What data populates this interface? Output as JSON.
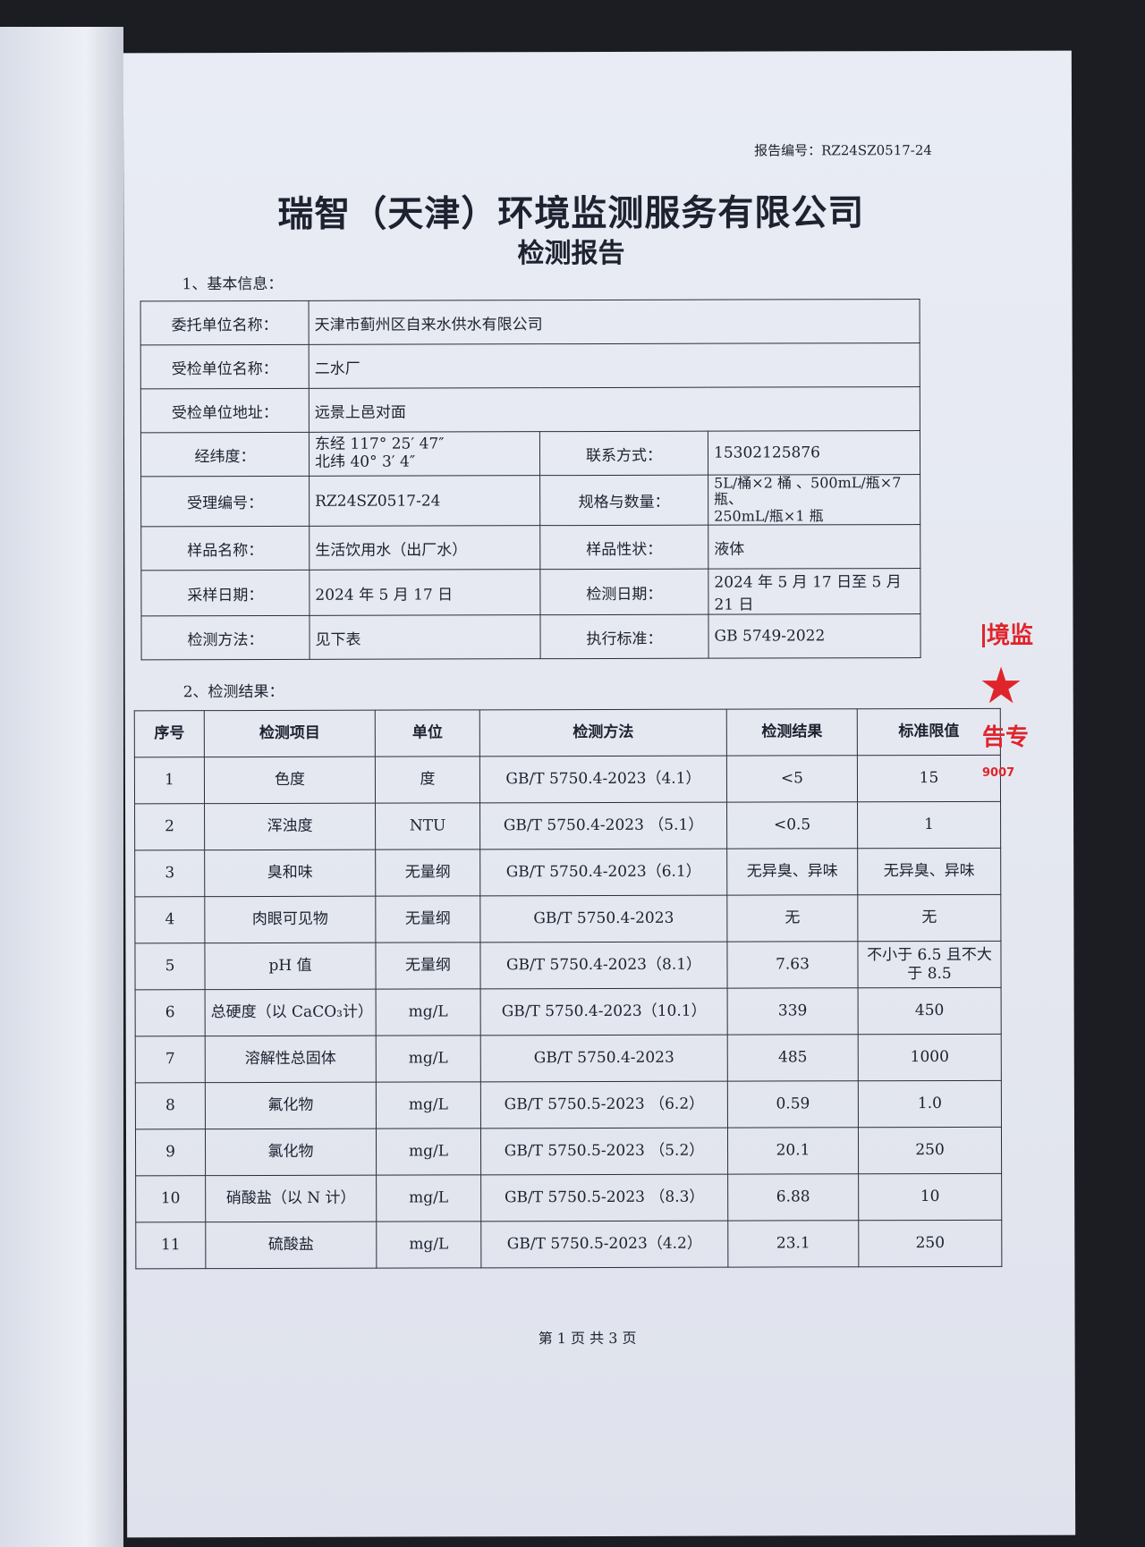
{
  "report_number": "报告编号：RZ24SZ0517-24",
  "title": "瑞智（天津）环境监测服务有限公司",
  "subtitle": "检测报告",
  "section1": "1、基本信息：",
  "basic_info": {
    "client_label": "委托单位名称：",
    "client": "天津市蓟州区自来水供水有限公司",
    "inspected_label": "受检单位名称：",
    "inspected": "二水厂",
    "address_label": "受检单位地址：",
    "address": "远景上邑对面",
    "coords_label": "经纬度：",
    "lon": "东经 117° 25′ 47″",
    "lat": "北纬 40° 3′ 4″",
    "contact_label": "联系方式：",
    "contact": "15302125876",
    "accept_label": "受理编号：",
    "accept": "RZ24SZ0517-24",
    "spec_label": "规格与数量：",
    "spec1": "5L/桶×2 桶 、500mL/瓶×7 瓶、",
    "spec2": "250mL/瓶×1 瓶",
    "sample_label": "样品名称：",
    "sample": "生活饮用水（出厂水）",
    "state_label": "样品性状：",
    "state": "液体",
    "sampling_label": "采样日期：",
    "sampling": "2024 年 5 月 17 日",
    "test_date_label": "检测日期：",
    "test_date": "2024 年 5 月 17 日至 5 月 21 日",
    "method_label": "检测方法：",
    "method": "见下表",
    "standard_label": "执行标准：",
    "standard": "GB 5749-2022"
  },
  "section2": "2、检测结果：",
  "results": {
    "headers": [
      "序号",
      "检测项目",
      "单位",
      "检测方法",
      "检测结果",
      "标准限值"
    ],
    "rows": [
      [
        "1",
        "色度",
        "度",
        "GB/T 5750.4-2023（4.1）",
        "<5",
        "15"
      ],
      [
        "2",
        "浑浊度",
        "NTU",
        "GB/T 5750.4-2023 （5.1）",
        "<0.5",
        "1"
      ],
      [
        "3",
        "臭和味",
        "无量纲",
        "GB/T 5750.4-2023（6.1）",
        "无异臭、异味",
        "无异臭、异味"
      ],
      [
        "4",
        "肉眼可见物",
        "无量纲",
        "GB/T 5750.4-2023",
        "无",
        "无"
      ],
      [
        "5",
        "pH 值",
        "无量纲",
        "GB/T 5750.4-2023（8.1）",
        "7.63",
        "不小于 6.5 且不大于 8.5"
      ],
      [
        "6",
        "总硬度（以 CaCO₃计）",
        "mg/L",
        "GB/T 5750.4-2023（10.1）",
        "339",
        "450"
      ],
      [
        "7",
        "溶解性总固体",
        "mg/L",
        "GB/T 5750.4-2023",
        "485",
        "1000"
      ],
      [
        "8",
        "氟化物",
        "mg/L",
        "GB/T 5750.5-2023 （6.2）",
        "0.59",
        "1.0"
      ],
      [
        "9",
        "氯化物",
        "mg/L",
        "GB/T 5750.5-2023 （5.2）",
        "20.1",
        "250"
      ],
      [
        "10",
        "硝酸盐（以 N 计）",
        "mg/L",
        "GB/T 5750.5-2023 （8.3）",
        "6.88",
        "10"
      ],
      [
        "11",
        "硫酸盐",
        "mg/L",
        "GB/T 5750.5-2023（4.2）",
        "23.1",
        "250"
      ]
    ]
  },
  "footer": "第 1 页 共 3 页",
  "stamp": {
    "text_top": "境监",
    "text_bottom": "告专",
    "code": "9007",
    "color": "#e0242c"
  }
}
